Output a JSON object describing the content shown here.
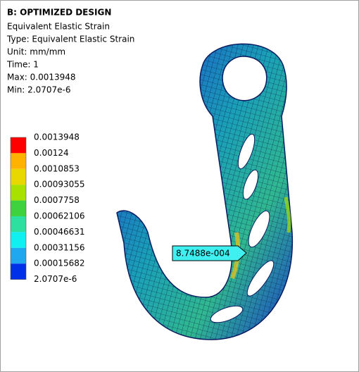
{
  "header": {
    "title": "B: OPTIMIZED DESIGN",
    "lines": [
      "Equivalent Elastic Strain",
      "Type: Equivalent Elastic Strain",
      "Unit: mm/mm",
      "Time: 1",
      "Max: 0.0013948",
      "Min: 2.0707e-6"
    ]
  },
  "legend": {
    "labels": [
      "0.0013948",
      "0.00124",
      "0.0010853",
      "0.00093055",
      "0.0007758",
      "0.00062106",
      "0.00046631",
      "0.00031156",
      "0.00015682",
      "2.0707e-6"
    ],
    "colors": [
      "#ff0000",
      "#ffb300",
      "#e8d800",
      "#a8e000",
      "#3ed23e",
      "#2ee0a0",
      "#10f0f0",
      "#1fa8f0",
      "#0030e8"
    ]
  },
  "probe": {
    "label": "8.7488e-004"
  }
}
